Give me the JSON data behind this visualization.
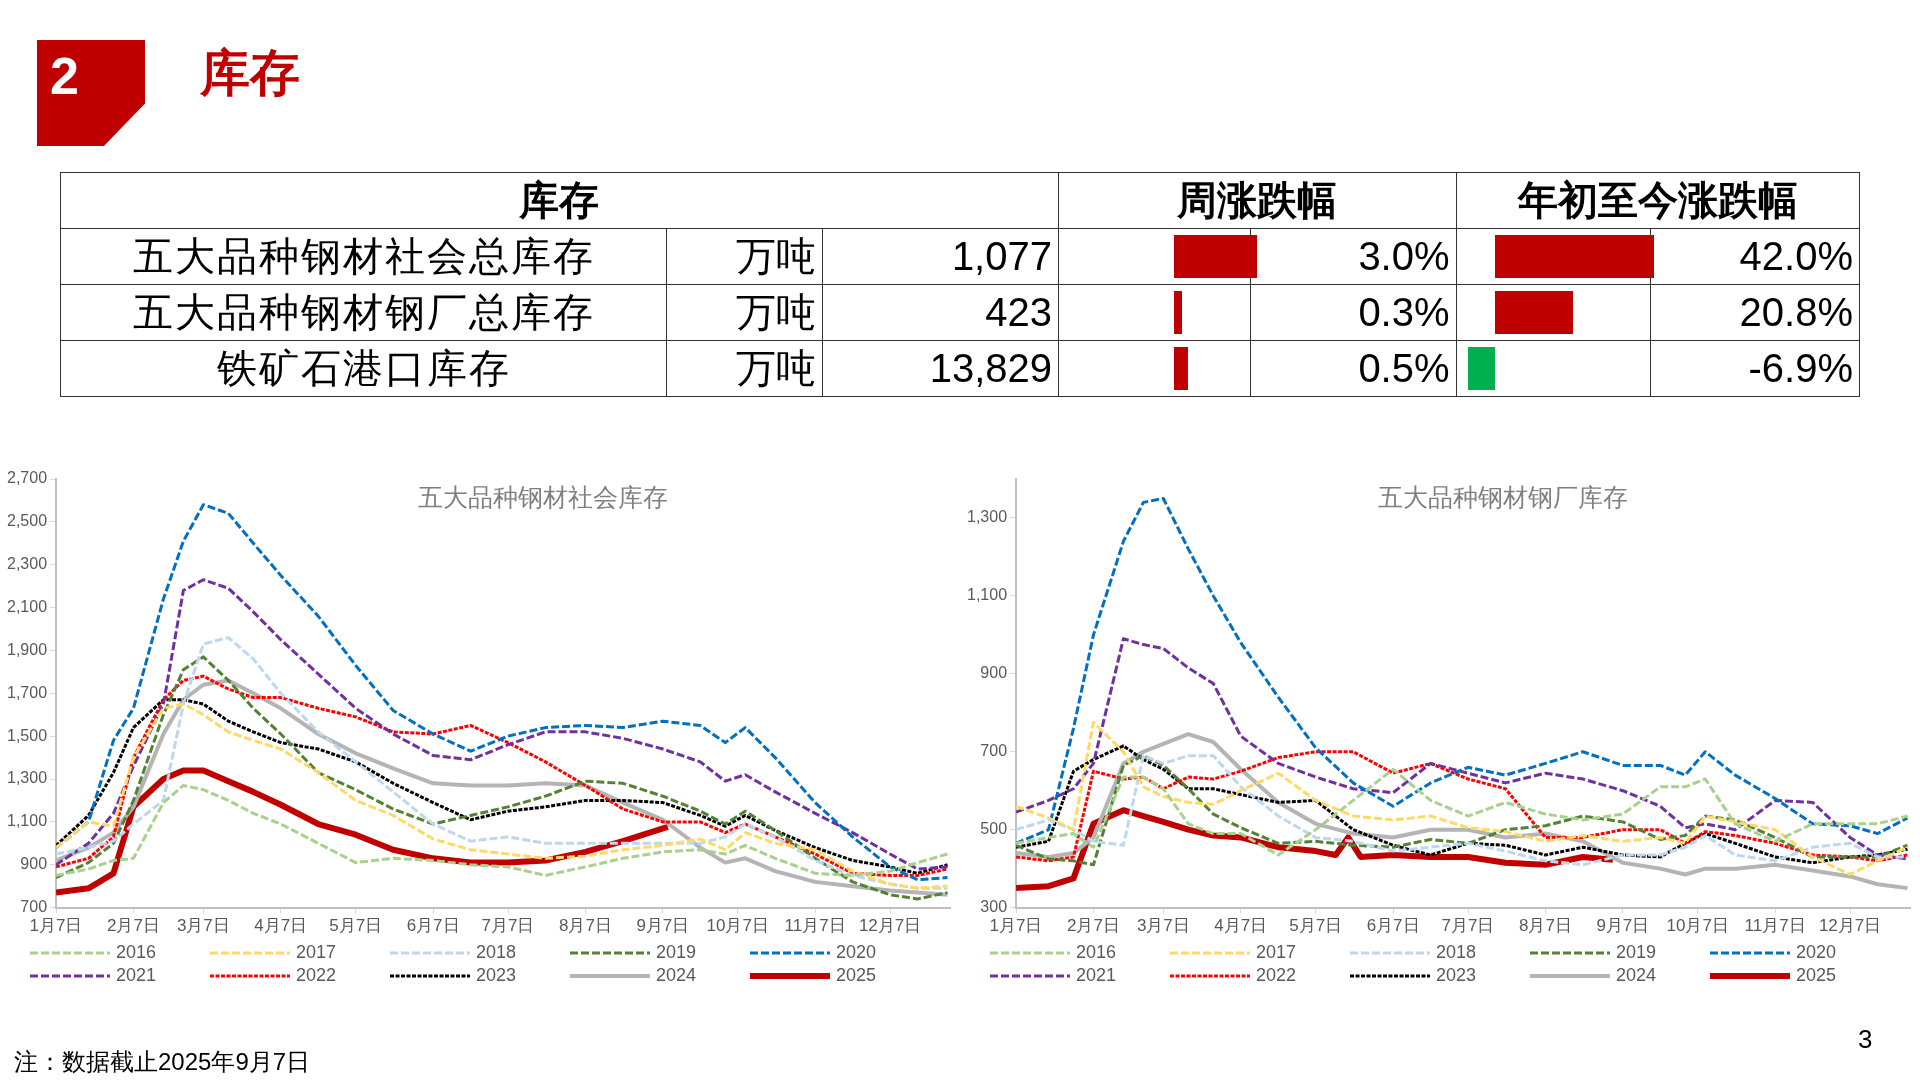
{
  "chart_data": [
    {
      "type": "other",
      "title": "库存",
      "subtitle": "库存",
      "ylabel": "万吨",
      "annotations": [
        "2",
        "注：数据截止2025年9月7日",
        "3"
      ],
      "categories": [
        "五大品种钢材社会总库存",
        "五大品种钢材钢厂总库存",
        "铁矿石港口库存"
      ],
      "series": [
        {
          "values": [
            1077,
            423,
            13829
          ],
          "value_labels": [
            "1,077",
            "423",
            "13,829"
          ]
        },
        {
          "name": "周涨跌幅",
          "values": [
            3.0,
            0.3,
            0.5
          ],
          "value_labels": [
            "3.0%",
            "0.3%",
            "0.5%"
          ],
          "colors": [
            "#c00000",
            "#c00000",
            "#c00000"
          ]
        },
        {
          "name": "年初至今涨跌幅",
          "values": [
            42.0,
            20.8,
            -6.9
          ],
          "value_labels": [
            "42.0%",
            "20.8%",
            "-6.9%"
          ],
          "colors": [
            "#c00000",
            "#c00000",
            "#00b050"
          ]
        }
      ]
    },
    {
      "type": "line",
      "title": "五大品种钢材社会库存",
      "legend": "bottom",
      "grid": false,
      "marker": "none",
      "x": [
        "--01-07",
        "--01-20",
        "--01-30",
        "--02-07",
        "--02-19",
        "--02-27",
        "--03-07",
        "--03-17",
        "--03-27",
        "--04-07",
        "--04-22",
        "--05-07",
        "--05-22",
        "--06-07",
        "--06-22",
        "--07-07",
        "--07-22",
        "--08-07",
        "--08-22",
        "--09-07",
        "--09-22",
        "--10-02",
        "--10-10",
        "--10-22",
        "--11-07",
        "--11-22",
        "--12-07",
        "--12-18",
        "--12-30"
      ],
      "xlim": [
        "--01-07",
        "--12-31"
      ],
      "xticks": [
        {
          "value": "--01-07",
          "label": "1月7日"
        },
        {
          "value": "--02-07",
          "label": "2月7日"
        },
        {
          "value": "--03-07",
          "label": "3月7日"
        },
        {
          "value": "--04-07",
          "label": "4月7日"
        },
        {
          "value": "--05-07",
          "label": "5月7日"
        },
        {
          "value": "--06-07",
          "label": "6月7日"
        },
        {
          "value": "--07-07",
          "label": "7月7日"
        },
        {
          "value": "--08-07",
          "label": "8月7日"
        },
        {
          "value": "--09-07",
          "label": "9月7日"
        },
        {
          "value": "--10-07",
          "label": "10月7日"
        },
        {
          "value": "--11-07",
          "label": "11月7日"
        },
        {
          "value": "--12-07",
          "label": "12月7日"
        }
      ],
      "ylim": [
        700,
        2700
      ],
      "yticks": [
        700,
        900,
        {
          "value": 1100,
          "label": "1,100"
        },
        {
          "value": 1300,
          "label": "1,300"
        },
        {
          "value": 1500,
          "label": "1,500"
        },
        {
          "value": 1700,
          "label": "1,700"
        },
        {
          "value": 1900,
          "label": "1,900"
        },
        {
          "value": 2100,
          "label": "2,100"
        },
        {
          "value": 2300,
          "label": "2,300"
        },
        {
          "value": 2500,
          "label": "2,500"
        },
        {
          "value": 2700,
          "label": "2,700"
        }
      ],
      "series": [
        {
          "name": "2016",
          "color": "#a9d18e",
          "line_style": "dashed",
          "values": [
            850,
            880,
            920,
            930,
            1190,
            1270,
            1250,
            1200,
            1140,
            1090,
            1000,
            910,
            930,
            920,
            900,
            890,
            850,
            890,
            930,
            960,
            970,
            950,
            990,
            930,
            860,
            850,
            870,
            910,
            950
          ]
        },
        {
          "name": "2017",
          "color": "#ffd966",
          "line_style": "dashed",
          "values": [
            980,
            1100,
            1080,
            1400,
            1630,
            1650,
            1600,
            1520,
            1480,
            1440,
            1330,
            1200,
            1130,
            1020,
            970,
            950,
            930,
            940,
            970,
            990,
            1020,
            970,
            1050,
            1000,
            970,
            870,
            810,
            790,
            800
          ]
        },
        {
          "name": "2018",
          "color": "#bdd7ee",
          "line_style": "dashed",
          "values": [
            950,
            980,
            1010,
            1090,
            1200,
            1650,
            1930,
            1960,
            1860,
            1700,
            1520,
            1380,
            1240,
            1090,
            1010,
            1030,
            1000,
            1000,
            1000,
            1000,
            1000,
            1030,
            1090,
            1030,
            920,
            850,
            810,
            790,
            790
          ]
        },
        {
          "name": "2019",
          "color": "#548235",
          "line_style": "dashed",
          "values": [
            840,
            910,
            1000,
            1200,
            1600,
            1810,
            1870,
            1760,
            1630,
            1510,
            1330,
            1250,
            1160,
            1090,
            1130,
            1170,
            1220,
            1290,
            1280,
            1220,
            1150,
            1090,
            1150,
            1060,
            930,
            820,
            760,
            740,
            770
          ]
        },
        {
          "name": "2020",
          "color": "#0070c0",
          "line_style": "dashed",
          "values": [
            980,
            1100,
            1480,
            1630,
            2140,
            2410,
            2580,
            2540,
            2400,
            2250,
            2060,
            1830,
            1620,
            1510,
            1430,
            1500,
            1540,
            1550,
            1540,
            1570,
            1550,
            1470,
            1540,
            1400,
            1190,
            1030,
            890,
            830,
            840
          ]
        },
        {
          "name": "2021",
          "color": "#7030a0",
          "line_style": "dashed",
          "values": [
            900,
            1000,
            1140,
            1360,
            1650,
            2180,
            2230,
            2190,
            2080,
            1950,
            1790,
            1630,
            1510,
            1410,
            1390,
            1460,
            1520,
            1520,
            1490,
            1440,
            1380,
            1290,
            1320,
            1240,
            1140,
            1050,
            950,
            880,
            890
          ]
        },
        {
          "name": "2022",
          "color": "#ff0000",
          "line_style": "dotted",
          "values": [
            890,
            930,
            1030,
            1400,
            1670,
            1760,
            1780,
            1720,
            1680,
            1680,
            1630,
            1590,
            1520,
            1510,
            1550,
            1470,
            1380,
            1270,
            1160,
            1100,
            1100,
            1050,
            1090,
            1030,
            950,
            860,
            850,
            850,
            880
          ]
        },
        {
          "name": "2023",
          "color": "#000000",
          "line_style": "dotted",
          "values": [
            990,
            1130,
            1330,
            1540,
            1670,
            1670,
            1650,
            1570,
            1520,
            1470,
            1440,
            1380,
            1280,
            1190,
            1110,
            1150,
            1170,
            1200,
            1200,
            1190,
            1130,
            1080,
            1130,
            1060,
            980,
            920,
            890,
            860,
            900
          ]
        },
        {
          "name": "2024",
          "color": "#b4b4b4",
          "line_style": "solid",
          "values": [
            920,
            980,
            1050,
            1170,
            1510,
            1670,
            1740,
            1760,
            1700,
            1630,
            1510,
            1420,
            1350,
            1280,
            1270,
            1270,
            1280,
            1270,
            1190,
            1110,
            980,
            910,
            930,
            870,
            820,
            800,
            780,
            770,
            760
          ]
        },
        {
          "name": "2025",
          "color": "#c00000",
          "line_style": "solid",
          "x": [
            "--01-07",
            "--01-20",
            "--01-30",
            "--02-07",
            "--02-19",
            "--02-27",
            "--03-07",
            "--03-17",
            "--03-27",
            "--04-07",
            "--04-22",
            "--05-07",
            "--05-22",
            "--06-07",
            "--06-22",
            "--07-07",
            "--07-22",
            "--08-07",
            "--08-22",
            "--09-09"
          ],
          "values": [
            770,
            790,
            860,
            1170,
            1300,
            1340,
            1340,
            1290,
            1240,
            1180,
            1090,
            1040,
            970,
            930,
            910,
            910,
            920,
            960,
            1010,
            1077
          ]
        }
      ]
    },
    {
      "type": "line",
      "title": "五大品种钢材钢厂库存",
      "legend": "bottom",
      "grid": false,
      "marker": "none",
      "x": [
        "--01-07",
        "--01-20",
        "--01-30",
        "--02-07",
        "--02-19",
        "--02-27",
        "--03-07",
        "--03-17",
        "--03-27",
        "--04-07",
        "--04-22",
        "--05-07",
        "--05-22",
        "--06-07",
        "--06-22",
        "--07-07",
        "--07-22",
        "--08-07",
        "--08-22",
        "--09-07",
        "--09-22",
        "--10-02",
        "--10-10",
        "--10-22",
        "--11-07",
        "--11-22",
        "--12-07",
        "--12-18",
        "--12-30"
      ],
      "xlim": [
        "--01-07",
        "--12-31"
      ],
      "xticks": [
        {
          "value": "--01-07",
          "label": "1月7日"
        },
        {
          "value": "--02-07",
          "label": "2月7日"
        },
        {
          "value": "--03-07",
          "label": "3月7日"
        },
        {
          "value": "--04-07",
          "label": "4月7日"
        },
        {
          "value": "--05-07",
          "label": "5月7日"
        },
        {
          "value": "--06-07",
          "label": "6月7日"
        },
        {
          "value": "--07-07",
          "label": "7月7日"
        },
        {
          "value": "--08-07",
          "label": "8月7日"
        },
        {
          "value": "--09-07",
          "label": "9月7日"
        },
        {
          "value": "--10-07",
          "label": "10月7日"
        },
        {
          "value": "--11-07",
          "label": "11月7日"
        },
        {
          "value": "--12-07",
          "label": "12月7日"
        }
      ],
      "ylim": [
        300,
        1400
      ],
      "yticks": [
        300,
        500,
        700,
        900,
        {
          "value": 1100,
          "label": "1,100"
        },
        {
          "value": 1300,
          "label": "1,300"
        }
      ],
      "series": [
        {
          "name": "2016",
          "color": "#a9d18e",
          "line_style": "dashed",
          "values": [
            465,
            480,
            490,
            455,
            635,
            635,
            605,
            515,
            490,
            490,
            435,
            500,
            575,
            655,
            575,
            535,
            570,
            540,
            525,
            540,
            610,
            610,
            630,
            515,
            470,
            515,
            515,
            515,
            535
          ]
        },
        {
          "name": "2017",
          "color": "#ffd966",
          "line_style": "dashed",
          "values": [
            560,
            530,
            500,
            775,
            700,
            610,
            585,
            570,
            565,
            600,
            645,
            575,
            535,
            525,
            535,
            505,
            495,
            470,
            485,
            470,
            480,
            465,
            535,
            520,
            500,
            430,
            385,
            420,
            455
          ]
        },
        {
          "name": "2018",
          "color": "#bdd7ee",
          "line_style": "dashed",
          "values": [
            500,
            525,
            500,
            470,
            460,
            690,
            670,
            690,
            690,
            610,
            535,
            480,
            470,
            445,
            455,
            465,
            445,
            420,
            410,
            435,
            435,
            455,
            485,
            435,
            420,
            455,
            465,
            430,
            430
          ]
        },
        {
          "name": "2019",
          "color": "#548235",
          "line_style": "dashed",
          "values": [
            460,
            425,
            420,
            410,
            665,
            690,
            665,
            605,
            540,
            505,
            465,
            470,
            460,
            455,
            475,
            465,
            500,
            510,
            535,
            520,
            475,
            485,
            535,
            525,
            480,
            430,
            430,
            430,
            460
          ]
        },
        {
          "name": "2020",
          "color": "#0070c0",
          "line_style": "dashed",
          "values": [
            465,
            500,
            760,
            1000,
            1240,
            1340,
            1350,
            1220,
            1100,
            980,
            840,
            710,
            620,
            560,
            620,
            660,
            640,
            670,
            700,
            665,
            665,
            640,
            700,
            640,
            580,
            515,
            510,
            490,
            530
          ]
        },
        {
          "name": "2021",
          "color": "#7030a0",
          "line_style": "dashed",
          "values": [
            545,
            575,
            605,
            670,
            990,
            975,
            965,
            915,
            875,
            740,
            670,
            635,
            605,
            595,
            670,
            645,
            620,
            645,
            630,
            600,
            560,
            505,
            515,
            500,
            575,
            570,
            480,
            435,
            425
          ]
        },
        {
          "name": "2022",
          "color": "#ff0000",
          "line_style": "dotted",
          "values": [
            430,
            420,
            430,
            650,
            630,
            635,
            605,
            635,
            630,
            650,
            685,
            700,
            700,
            645,
            670,
            630,
            605,
            480,
            480,
            500,
            500,
            465,
            495,
            485,
            465,
            435,
            430,
            420,
            435
          ]
        },
        {
          "name": "2023",
          "color": "#000000",
          "line_style": "dotted",
          "values": [
            455,
            470,
            650,
            680,
            715,
            680,
            655,
            605,
            605,
            590,
            570,
            575,
            500,
            460,
            435,
            465,
            460,
            435,
            455,
            435,
            430,
            465,
            490,
            465,
            430,
            415,
            430,
            435,
            450
          ]
        },
        {
          "name": "2024",
          "color": "#b4b4b4",
          "line_style": "solid",
          "values": [
            440,
            430,
            440,
            480,
            670,
            700,
            720,
            745,
            725,
            655,
            570,
            515,
            490,
            480,
            500,
            500,
            480,
            490,
            470,
            415,
            400,
            385,
            400,
            400,
            410,
            395,
            380,
            360,
            350
          ]
        },
        {
          "name": "2025",
          "color": "#c00000",
          "line_style": "solid",
          "x": [
            "--01-07",
            "--01-20",
            "--01-30",
            "--02-07",
            "--02-19",
            "--02-27",
            "--03-07",
            "--03-17",
            "--03-27",
            "--04-07",
            "--04-22",
            "--05-07",
            "--05-15",
            "--05-20",
            "--05-25",
            "--06-07",
            "--06-22",
            "--07-07",
            "--07-22",
            "--08-07",
            "--08-22",
            "--09-03"
          ],
          "values": [
            350,
            355,
            375,
            515,
            550,
            535,
            520,
            500,
            485,
            480,
            455,
            445,
            435,
            480,
            430,
            435,
            430,
            430,
            415,
            410,
            430,
            423
          ]
        }
      ]
    }
  ]
}
